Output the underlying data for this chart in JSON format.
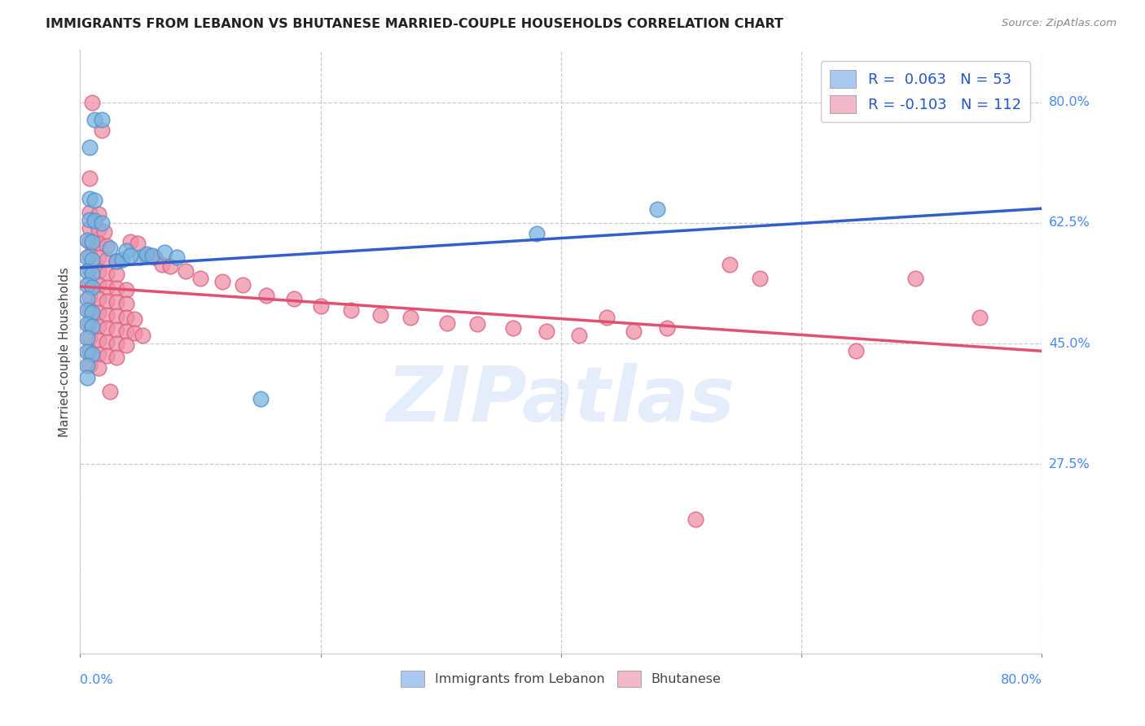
{
  "title": "IMMIGRANTS FROM LEBANON VS BHUTANESE MARRIED-COUPLE HOUSEHOLDS CORRELATION CHART",
  "source": "Source: ZipAtlas.com",
  "ylabel": "Married-couple Households",
  "ytick_labels": [
    "80.0%",
    "62.5%",
    "45.0%",
    "27.5%"
  ],
  "ytick_values": [
    0.8,
    0.625,
    0.45,
    0.275
  ],
  "xmin": 0.0,
  "xmax": 0.8,
  "ymin": 0.0,
  "ymax": 0.875,
  "legend_r_entries": [
    {
      "r_label": "R = ",
      "r_value": " 0.063",
      "n_label": "  N = ",
      "n_value": "53",
      "color": "#aac8f0"
    },
    {
      "r_label": "R = ",
      "r_value": "-0.103",
      "n_label": "  N = ",
      "n_value": "112",
      "color": "#f4b8c8"
    }
  ],
  "lebanon_color": "#7ab4e0",
  "lebanon_edge_color": "#5090c8",
  "bhutanese_color": "#f090a8",
  "bhutanese_edge_color": "#d86080",
  "lebanon_line_color": "#3060c8",
  "bhutanese_line_color": "#e05070",
  "watermark": "ZIPatlas",
  "background_color": "#ffffff",
  "grid_color": "#cccccc",
  "lebanon_points": [
    [
      0.012,
      0.775
    ],
    [
      0.018,
      0.775
    ],
    [
      0.008,
      0.735
    ],
    [
      0.008,
      0.66
    ],
    [
      0.012,
      0.658
    ],
    [
      0.008,
      0.63
    ],
    [
      0.012,
      0.628
    ],
    [
      0.018,
      0.625
    ],
    [
      0.006,
      0.6
    ],
    [
      0.01,
      0.598
    ],
    [
      0.006,
      0.575
    ],
    [
      0.01,
      0.572
    ],
    [
      0.006,
      0.555
    ],
    [
      0.01,
      0.552
    ],
    [
      0.006,
      0.535
    ],
    [
      0.01,
      0.532
    ],
    [
      0.006,
      0.515
    ],
    [
      0.006,
      0.498
    ],
    [
      0.01,
      0.495
    ],
    [
      0.006,
      0.478
    ],
    [
      0.01,
      0.475
    ],
    [
      0.006,
      0.458
    ],
    [
      0.006,
      0.438
    ],
    [
      0.01,
      0.435
    ],
    [
      0.006,
      0.418
    ],
    [
      0.006,
      0.4
    ],
    [
      0.025,
      0.588
    ],
    [
      0.03,
      0.57
    ],
    [
      0.035,
      0.572
    ],
    [
      0.05,
      0.575
    ],
    [
      0.038,
      0.585
    ],
    [
      0.042,
      0.578
    ],
    [
      0.055,
      0.58
    ],
    [
      0.06,
      0.578
    ],
    [
      0.07,
      0.582
    ],
    [
      0.08,
      0.575
    ],
    [
      0.15,
      0.37
    ],
    [
      0.38,
      0.61
    ],
    [
      0.48,
      0.645
    ]
  ],
  "bhutanese_points": [
    [
      0.01,
      0.8
    ],
    [
      0.018,
      0.76
    ],
    [
      0.008,
      0.69
    ],
    [
      0.008,
      0.64
    ],
    [
      0.015,
      0.638
    ],
    [
      0.008,
      0.618
    ],
    [
      0.015,
      0.615
    ],
    [
      0.02,
      0.612
    ],
    [
      0.008,
      0.598
    ],
    [
      0.015,
      0.595
    ],
    [
      0.022,
      0.592
    ],
    [
      0.008,
      0.578
    ],
    [
      0.015,
      0.575
    ],
    [
      0.022,
      0.572
    ],
    [
      0.03,
      0.57
    ],
    [
      0.008,
      0.558
    ],
    [
      0.015,
      0.555
    ],
    [
      0.022,
      0.552
    ],
    [
      0.03,
      0.55
    ],
    [
      0.008,
      0.538
    ],
    [
      0.015,
      0.535
    ],
    [
      0.022,
      0.532
    ],
    [
      0.03,
      0.53
    ],
    [
      0.038,
      0.528
    ],
    [
      0.008,
      0.518
    ],
    [
      0.015,
      0.515
    ],
    [
      0.022,
      0.512
    ],
    [
      0.03,
      0.51
    ],
    [
      0.038,
      0.508
    ],
    [
      0.008,
      0.498
    ],
    [
      0.015,
      0.495
    ],
    [
      0.022,
      0.492
    ],
    [
      0.03,
      0.49
    ],
    [
      0.038,
      0.488
    ],
    [
      0.045,
      0.485
    ],
    [
      0.008,
      0.478
    ],
    [
      0.015,
      0.475
    ],
    [
      0.022,
      0.472
    ],
    [
      0.03,
      0.47
    ],
    [
      0.038,
      0.468
    ],
    [
      0.045,
      0.465
    ],
    [
      0.052,
      0.462
    ],
    [
      0.008,
      0.458
    ],
    [
      0.015,
      0.455
    ],
    [
      0.022,
      0.452
    ],
    [
      0.03,
      0.45
    ],
    [
      0.038,
      0.448
    ],
    [
      0.008,
      0.438
    ],
    [
      0.015,
      0.435
    ],
    [
      0.022,
      0.432
    ],
    [
      0.03,
      0.43
    ],
    [
      0.008,
      0.418
    ],
    [
      0.015,
      0.415
    ],
    [
      0.025,
      0.38
    ],
    [
      0.042,
      0.598
    ],
    [
      0.048,
      0.595
    ],
    [
      0.055,
      0.578
    ],
    [
      0.062,
      0.575
    ],
    [
      0.068,
      0.565
    ],
    [
      0.075,
      0.562
    ],
    [
      0.088,
      0.555
    ],
    [
      0.1,
      0.545
    ],
    [
      0.118,
      0.54
    ],
    [
      0.135,
      0.535
    ],
    [
      0.155,
      0.52
    ],
    [
      0.178,
      0.515
    ],
    [
      0.2,
      0.505
    ],
    [
      0.225,
      0.498
    ],
    [
      0.25,
      0.492
    ],
    [
      0.275,
      0.488
    ],
    [
      0.305,
      0.48
    ],
    [
      0.33,
      0.478
    ],
    [
      0.36,
      0.472
    ],
    [
      0.388,
      0.468
    ],
    [
      0.415,
      0.462
    ],
    [
      0.438,
      0.488
    ],
    [
      0.46,
      0.468
    ],
    [
      0.488,
      0.472
    ],
    [
      0.512,
      0.195
    ],
    [
      0.54,
      0.565
    ],
    [
      0.565,
      0.545
    ],
    [
      0.645,
      0.44
    ],
    [
      0.695,
      0.545
    ],
    [
      0.748,
      0.488
    ]
  ]
}
